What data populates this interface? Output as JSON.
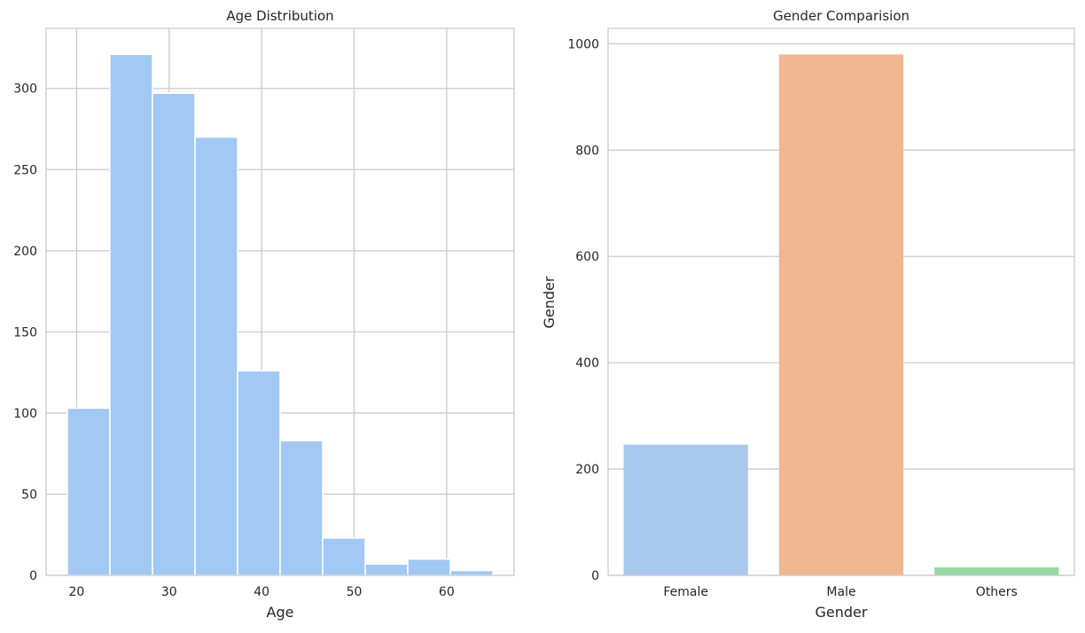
{
  "colors": {
    "hist_bar": "#a1c9f4",
    "grid": "#cccccc",
    "axes_edge": "#cccccc",
    "text": "#262626",
    "bar_colors": [
      "#a9c8ee",
      "#f0b891",
      "#97d7a4"
    ]
  },
  "chart_data": [
    {
      "type": "bar",
      "title": "Age Distribution",
      "xlabel": "Age",
      "ylabel": "",
      "bin_edges": [
        19,
        23.6,
        28.2,
        32.8,
        37.4,
        42.0,
        46.6,
        51.2,
        55.8,
        60.4,
        65
      ],
      "values": [
        103,
        321,
        297,
        270,
        126,
        83,
        23,
        7,
        10,
        3
      ],
      "xlim": [
        16.7,
        67.3
      ],
      "ylim": [
        0,
        337
      ],
      "xticks": [
        20,
        30,
        40,
        50,
        60
      ],
      "yticks": [
        0,
        50,
        100,
        150,
        200,
        250,
        300
      ],
      "grid": true
    },
    {
      "type": "bar",
      "title": "Gender Comparision",
      "xlabel": "Gender",
      "ylabel": "Gender",
      "categories": [
        "Female",
        "Male",
        "Others"
      ],
      "values": [
        246,
        980,
        15
      ],
      "ylim": [
        0,
        1029
      ],
      "yticks": [
        0,
        200,
        400,
        600,
        800,
        1000
      ],
      "grid": true
    }
  ]
}
